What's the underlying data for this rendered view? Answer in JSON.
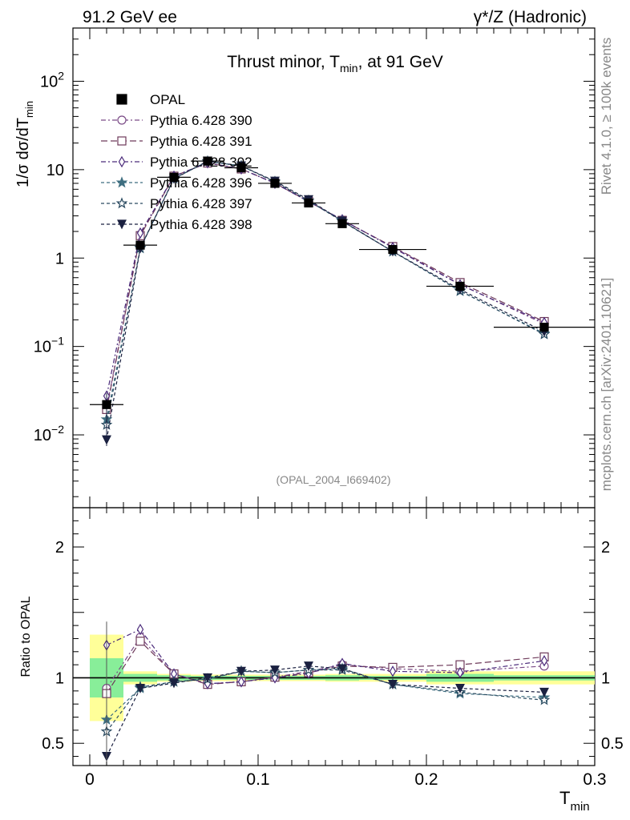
{
  "header": {
    "left": "91.2 GeV ee",
    "right": "γ*/Z (Hadronic)"
  },
  "side": {
    "top": "Rivet 4.1.0, ≥ 100k events",
    "bottom": "mcplots.cern.ch [arXiv:2401.10621]"
  },
  "chart_data": {
    "type": "line",
    "title": "Thrust minor, T_min, at 91 GeV",
    "title_parts": {
      "main": "Thrust minor, T",
      "sub": "min",
      "end": ", at 91 GeV"
    },
    "analysis_id": "(OPAL_2004_I669402)",
    "ylabel": "1/σ dσ/dT_min",
    "ylabel_parts": {
      "pre": "1/σ  dσ/dT",
      "sub": "min"
    },
    "xlabel": "T_min",
    "xlabel_parts": {
      "main": "T",
      "sub": "min"
    },
    "ratio_ylabel": "Ratio to OPAL",
    "x_range": [
      -0.01,
      0.3
    ],
    "y_range_log": [
      0.0015,
      400
    ],
    "ratio_range": [
      0.33,
      2.3
    ],
    "x_ticks": [
      {
        "v": 0,
        "label": "0"
      },
      {
        "v": 0.1,
        "label": "0.1"
      },
      {
        "v": 0.2,
        "label": "0.2"
      },
      {
        "v": 0.3,
        "label": "0.3"
      }
    ],
    "y_ticks": [
      {
        "v": 0.01,
        "base": "10",
        "exp": "−2"
      },
      {
        "v": 0.1,
        "base": "10",
        "exp": "−1"
      },
      {
        "v": 1,
        "base": "1",
        "exp": ""
      },
      {
        "v": 10,
        "base": "10",
        "exp": ""
      },
      {
        "v": 100,
        "base": "10",
        "exp": "2"
      }
    ],
    "ratio_ticks": [
      {
        "v": 0.5,
        "label": "0.5"
      },
      {
        "v": 1,
        "label": "1"
      },
      {
        "v": 2,
        "label": "2"
      }
    ],
    "bins": [
      {
        "lo": 0.0,
        "hi": 0.02,
        "x": 0.01,
        "y": 0.022,
        "err_stat": 0.15,
        "err_tot": 0.33
      },
      {
        "lo": 0.02,
        "hi": 0.04,
        "x": 0.03,
        "y": 1.4,
        "err_stat": 0.03,
        "err_tot": 0.05
      },
      {
        "lo": 0.04,
        "hi": 0.06,
        "x": 0.05,
        "y": 8.2,
        "err_stat": 0.02,
        "err_tot": 0.03
      },
      {
        "lo": 0.06,
        "hi": 0.08,
        "x": 0.07,
        "y": 12.5,
        "err_stat": 0.015,
        "err_tot": 0.025
      },
      {
        "lo": 0.08,
        "hi": 0.1,
        "x": 0.09,
        "y": 10.5,
        "err_stat": 0.015,
        "err_tot": 0.025
      },
      {
        "lo": 0.1,
        "hi": 0.12,
        "x": 0.11,
        "y": 7.0,
        "err_stat": 0.015,
        "err_tot": 0.025
      },
      {
        "lo": 0.12,
        "hi": 0.14,
        "x": 0.13,
        "y": 4.2,
        "err_stat": 0.015,
        "err_tot": 0.025
      },
      {
        "lo": 0.14,
        "hi": 0.16,
        "x": 0.15,
        "y": 2.45,
        "err_stat": 0.02,
        "err_tot": 0.03
      },
      {
        "lo": 0.16,
        "hi": 0.2,
        "x": 0.18,
        "y": 1.25,
        "err_stat": 0.015,
        "err_tot": 0.03
      },
      {
        "lo": 0.2,
        "hi": 0.24,
        "x": 0.22,
        "y": 0.48,
        "err_stat": 0.03,
        "err_tot": 0.05
      },
      {
        "lo": 0.24,
        "hi": 0.3,
        "x": 0.27,
        "y": 0.165,
        "err_stat": 0.02,
        "err_tot": 0.05
      }
    ],
    "data_series": {
      "name": "OPAL",
      "color": "#000000",
      "marker": "square-filled"
    },
    "series": [
      {
        "name": "Pythia 6.428 390",
        "color": "#7a4a86",
        "marker": "circle-open",
        "dash": "6 3 2 3",
        "ratios": [
          0.92,
          1.31,
          1.03,
          0.955,
          0.97,
          1.005,
          1.05,
          1.1,
          1.07,
          1.05,
          1.09
        ]
      },
      {
        "name": "Pythia 6.428 391",
        "color": "#6e3a5a",
        "marker": "square-open",
        "dash": "8 4",
        "ratios": [
          0.88,
          1.28,
          1.03,
          0.95,
          0.97,
          1.005,
          1.04,
          1.09,
          1.08,
          1.1,
          1.16
        ]
      },
      {
        "name": "Pythia 6.428 392",
        "color": "#4a2a7a",
        "marker": "diamond-open",
        "dash": "6 3 2 3",
        "ratios": [
          1.25,
          1.37,
          1.03,
          0.955,
          0.97,
          1.0,
          1.035,
          1.11,
          1.05,
          1.04,
          1.13
        ]
      },
      {
        "name": "Pythia 6.428 396",
        "color": "#3e6e80",
        "marker": "star-filled",
        "dash": "4 3",
        "ratios": [
          0.68,
          0.92,
          0.97,
          0.99,
          1.05,
          1.04,
          1.06,
          1.07,
          0.95,
          0.88,
          0.85
        ]
      },
      {
        "name": "Pythia 6.428 397",
        "color": "#2a4a60",
        "marker": "star-open",
        "dash": "4 3",
        "ratios": [
          0.59,
          0.93,
          0.97,
          0.99,
          1.05,
          1.04,
          1.06,
          1.06,
          0.95,
          0.89,
          0.83
        ]
      },
      {
        "name": "Pythia 6.428 398",
        "color": "#1a2040",
        "marker": "triangle-down-filled",
        "dash": "4 3",
        "ratios": [
          0.4,
          0.92,
          0.96,
          1.0,
          1.05,
          1.06,
          1.09,
          1.07,
          0.95,
          0.92,
          0.89
        ]
      }
    ]
  }
}
